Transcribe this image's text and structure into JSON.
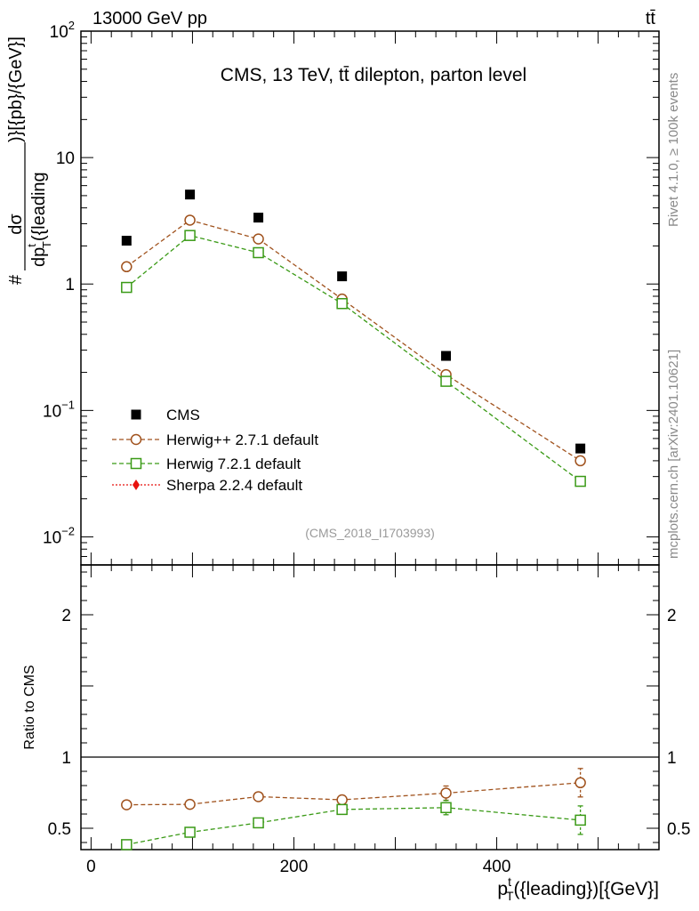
{
  "header": {
    "left": "13000 GeV pp",
    "right": "tt̄"
  },
  "side": {
    "rivet": "Rivet 4.1.0, ≥ 100k events",
    "mcplots": "mcplots.cern.ch [arXiv:2401.10621]"
  },
  "colors": {
    "cms": "#000000",
    "herwigpp": "#a0521d",
    "herwig7": "#3a9a16",
    "sherpa": "#e8120e"
  },
  "chart_data": [
    {
      "type": "scatter",
      "title": "CMS, 13 TeV, tt̄ dilepton, parton level",
      "watermark": "(CMS_2018_I1703993)",
      "ylabel": "dσ / dp_T^t({leading}) [{pb}/{GeV}]",
      "ylabel_parts": {
        "hash": "#",
        "num": "dσ",
        "den": "dp",
        "den_sub": "T",
        "den_sup": "t",
        "den_rest": "({leading",
        "unit": ")}[{pb}/{GeV}]"
      },
      "yscale": "log",
      "ylim": [
        0.006,
        100
      ],
      "xlim": [
        -10,
        560
      ],
      "yticks": [
        {
          "v": 100,
          "label": "10",
          "exp": "2"
        },
        {
          "v": 10,
          "label": "10",
          "exp": ""
        },
        {
          "v": 1,
          "label": "1",
          "exp": ""
        },
        {
          "v": 0.1,
          "label": "10",
          "exp": "−1"
        },
        {
          "v": 0.01,
          "label": "10",
          "exp": "−2"
        }
      ],
      "legend_position": "lower-left",
      "x": [
        35,
        97.5,
        165,
        247.5,
        350,
        482.5
      ],
      "series": [
        {
          "name": "CMS",
          "key": "cms",
          "style": "square-filled",
          "values": [
            2.2,
            5.1,
            3.35,
            1.15,
            0.27,
            0.05
          ]
        },
        {
          "name": "Herwig++ 2.7.1 default",
          "key": "herwigpp",
          "style": "circle-open",
          "values": [
            1.37,
            3.2,
            2.27,
            0.76,
            0.192,
            0.04
          ]
        },
        {
          "name": "Herwig 7.2.1 default",
          "key": "herwig7",
          "style": "square-open",
          "values": [
            0.94,
            2.42,
            1.77,
            0.7,
            0.17,
            0.0275
          ]
        },
        {
          "name": "Sherpa 2.2.4 default",
          "key": "sherpa",
          "style": "diamond-filled",
          "values": []
        }
      ]
    },
    {
      "type": "scatter",
      "ylabel": "Ratio to CMS",
      "xlabel": "p_T^t({leading})[{GeV}]",
      "xlabel_parts": {
        "p": "p",
        "sub": "T",
        "sup": "t",
        "rest": "({leading})[{GeV}]"
      },
      "ylim": [
        0.35,
        2.35
      ],
      "xlim": [
        -10,
        560
      ],
      "yticks_left": [
        {
          "v": 2,
          "label": "2"
        },
        {
          "v": 1,
          "label": "1"
        },
        {
          "v": 0.5,
          "label": "0.5"
        }
      ],
      "yticks_right": [
        {
          "v": 2,
          "label": "2"
        },
        {
          "v": 1,
          "label": "1"
        },
        {
          "v": 0.5,
          "label": "0.5"
        }
      ],
      "xticks": [
        {
          "v": 0,
          "label": "0"
        },
        {
          "v": 200,
          "label": "200"
        },
        {
          "v": 400,
          "label": "400"
        }
      ],
      "reference_line": 1,
      "x": [
        35,
        97.5,
        165,
        247.5,
        350,
        482.5
      ],
      "series": [
        {
          "name": "Herwig++ 2.7.1 default",
          "key": "herwigpp",
          "style": "circle-open",
          "values": [
            0.665,
            0.668,
            0.722,
            0.7,
            0.747,
            0.82
          ],
          "errors": [
            0.02,
            0.01,
            0.012,
            0.025,
            0.05,
            0.1
          ]
        },
        {
          "name": "Herwig 7.2.1 default",
          "key": "herwig7",
          "style": "square-open",
          "values": [
            0.385,
            0.472,
            0.538,
            0.632,
            0.645,
            0.557
          ],
          "errors": [
            0.01,
            0.01,
            0.012,
            0.03,
            0.05,
            0.1
          ]
        }
      ]
    }
  ]
}
